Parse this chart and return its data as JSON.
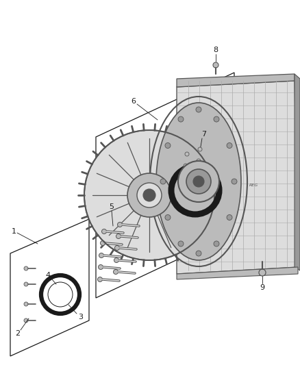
{
  "bg_color": "#ffffff",
  "figsize": [
    4.38,
    5.33
  ],
  "dpi": 100,
  "line_color": "#1a1a1a",
  "part_color": "#999999",
  "part_color_light": "#dddddd",
  "part_color_dark": "#555555",
  "part_color_mid": "#bbbbbb"
}
